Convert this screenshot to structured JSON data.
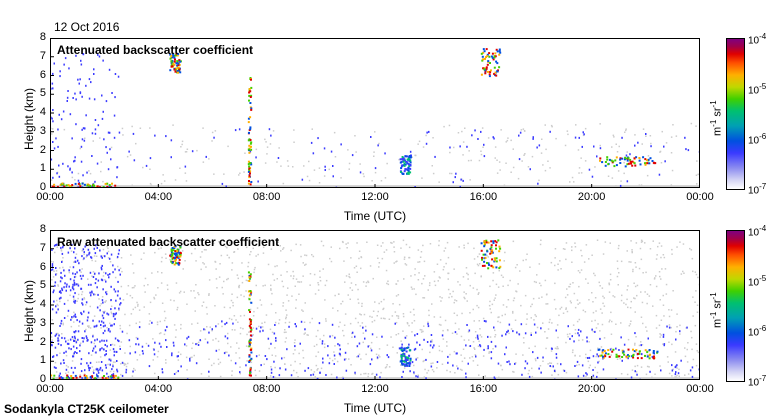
{
  "date_label": "12 Oct 2016",
  "instrument_label": "Sodankyla CT25K ceilometer",
  "colors": {
    "axis": "#000000",
    "noise": "#cccccc",
    "low": "#3a3aff",
    "high": "#e00000"
  },
  "chart_data": [
    {
      "type": "heatmap",
      "title": "Attenuated backscatter coefficient",
      "xlabel": "Time (UTC)",
      "ylabel": "Height (km)",
      "x_ticks": [
        "00:00",
        "04:00",
        "08:00",
        "12:00",
        "16:00",
        "20:00",
        "00:00"
      ],
      "y_ticks": [
        "0",
        "1",
        "2",
        "3",
        "4",
        "5",
        "6",
        "7",
        "8"
      ],
      "xlim_hours": [
        0,
        24
      ],
      "ylim_km": [
        0,
        8
      ],
      "colorbar": {
        "scale": "log",
        "label": "m-1 sr-1",
        "min": "10-7",
        "max": "10-4",
        "ticks": [
          "10-4",
          "10-5",
          "10-6",
          "10-7"
        ]
      },
      "features": [
        {
          "t0": 4.4,
          "t1": 4.8,
          "h0": 6.2,
          "h1": 7.2,
          "level": "high"
        },
        {
          "t0": 15.9,
          "t1": 16.6,
          "h0": 6.0,
          "h1": 7.5,
          "level": "high"
        },
        {
          "t0": 20.2,
          "t1": 22.4,
          "h0": 1.2,
          "h1": 1.7,
          "level": "high"
        },
        {
          "t0": 12.9,
          "t1": 13.3,
          "h0": 0.8,
          "h1": 1.8,
          "level": "mid"
        },
        {
          "t0": 7.3,
          "t1": 7.4,
          "h0": 0.2,
          "h1": 6.0,
          "level": "high"
        },
        {
          "t0": 0.0,
          "t1": 2.5,
          "h0": 0.0,
          "h1": 0.3,
          "level": "high"
        }
      ]
    },
    {
      "type": "heatmap",
      "title": "Raw attenuated backscatter coefficient",
      "xlabel": "Time (UTC)",
      "ylabel": "Height (km)",
      "x_ticks": [
        "00:00",
        "04:00",
        "08:00",
        "12:00",
        "16:00",
        "20:00",
        "00:00"
      ],
      "y_ticks": [
        "0",
        "1",
        "2",
        "3",
        "4",
        "5",
        "6",
        "7",
        "8"
      ],
      "xlim_hours": [
        0,
        24
      ],
      "ylim_km": [
        0,
        8
      ],
      "colorbar": {
        "scale": "log",
        "label": "m-1 sr-1",
        "min": "10-7",
        "max": "10-4",
        "ticks": [
          "10-4",
          "10-5",
          "10-6",
          "10-7"
        ]
      },
      "features": [
        {
          "t0": 4.4,
          "t1": 4.8,
          "h0": 6.2,
          "h1": 7.2,
          "level": "high"
        },
        {
          "t0": 15.9,
          "t1": 16.6,
          "h0": 6.0,
          "h1": 7.5,
          "level": "high"
        },
        {
          "t0": 20.2,
          "t1": 22.4,
          "h0": 1.2,
          "h1": 1.7,
          "level": "high"
        },
        {
          "t0": 12.9,
          "t1": 13.3,
          "h0": 0.8,
          "h1": 1.8,
          "level": "mid"
        },
        {
          "t0": 7.3,
          "t1": 7.4,
          "h0": 0.2,
          "h1": 6.0,
          "level": "high"
        },
        {
          "t0": 0.0,
          "t1": 2.5,
          "h0": 0.0,
          "h1": 0.3,
          "level": "high"
        }
      ]
    }
  ]
}
